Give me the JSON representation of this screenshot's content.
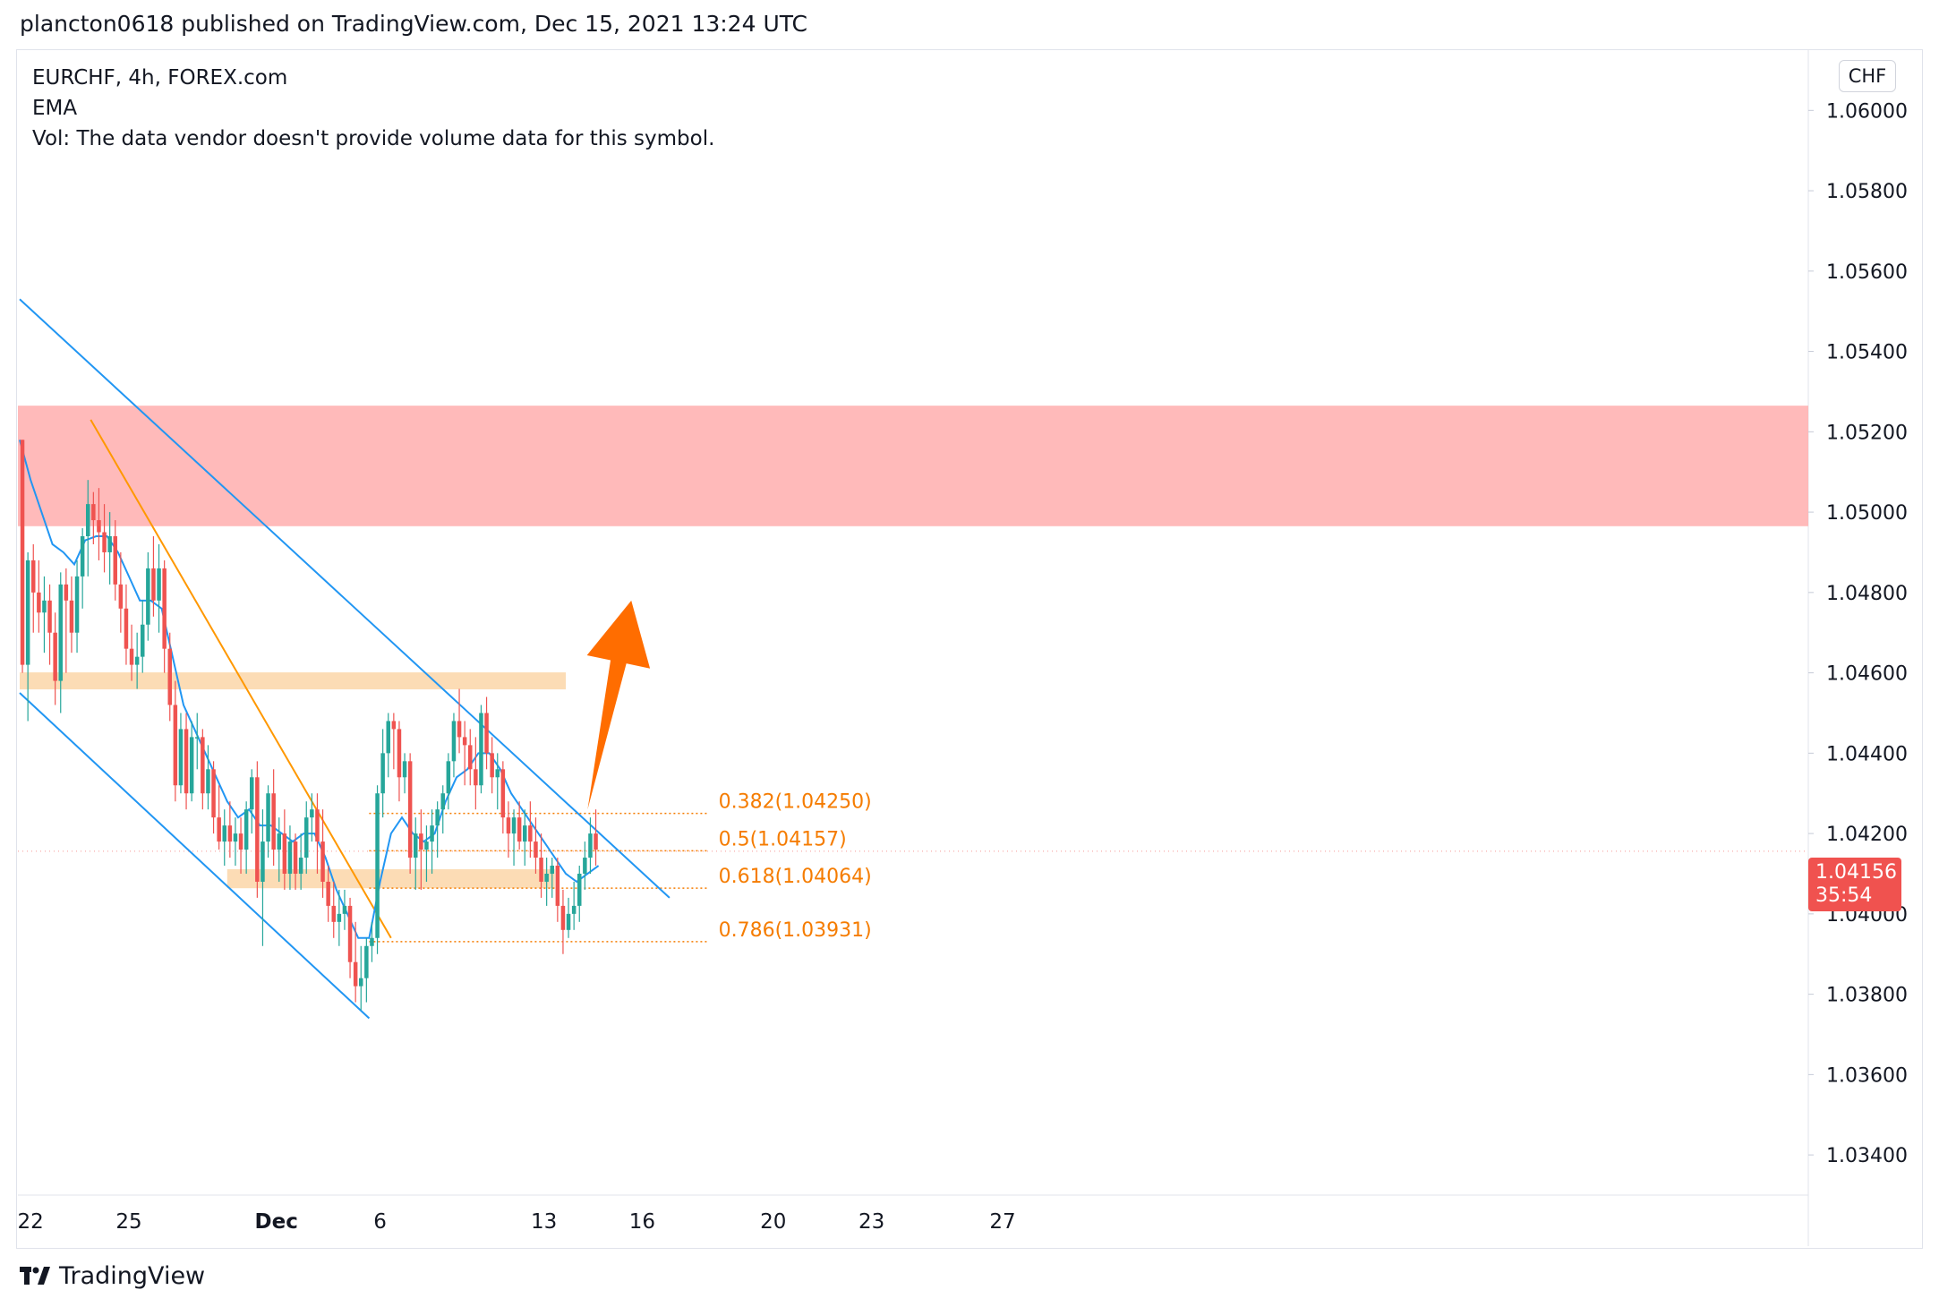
{
  "header": {
    "published_line": "plancton0618 published on TradingView.com, Dec 15, 2021 13:24 UTC"
  },
  "legend": {
    "symbol_line": "EURCHF, 4h, FOREX.com",
    "indicator_line": "EMA",
    "volume_line": "Vol: The data vendor doesn't provide volume data for this symbol."
  },
  "price_axis": {
    "currency": "CHF",
    "current_price": "1.04156",
    "countdown": "35:54"
  },
  "footer": {
    "brand": "TradingView"
  },
  "colors": {
    "up": "#26a69a",
    "down": "#ef5350",
    "ema": "#2196f3",
    "channel": "#2196f3",
    "resistance_zone": "#ffb3b3",
    "support_zone": "#fcd6a8",
    "fib": "#f57c00",
    "arrow": "#ff6d00",
    "price_tag": "#f0524f"
  },
  "chart_data": {
    "type": "candlestick",
    "symbol": "EURCHF",
    "interval": "4h",
    "ylim": [
      1.033,
      1.0615
    ],
    "y_ticks": [
      "1.06000",
      "1.05800",
      "1.05600",
      "1.05400",
      "1.05200",
      "1.05000",
      "1.04800",
      "1.04600",
      "1.04400",
      "1.04200",
      "1.04000",
      "1.03800",
      "1.03600",
      "1.03400"
    ],
    "x_ticks": [
      {
        "label": "22",
        "bar": 2
      },
      {
        "label": "25",
        "bar": 20
      },
      {
        "label": "Dec",
        "bar": 47
      },
      {
        "label": "6",
        "bar": 66
      },
      {
        "label": "13",
        "bar": 96
      },
      {
        "label": "16",
        "bar": 114
      },
      {
        "label": "20",
        "bar": 138
      },
      {
        "label": "23",
        "bar": 156
      },
      {
        "label": "27",
        "bar": 180
      }
    ],
    "ohlc": [
      [
        1.0518,
        1.0518,
        1.046,
        1.0462
      ],
      [
        1.0462,
        1.049,
        1.0448,
        1.0488
      ],
      [
        1.0488,
        1.0492,
        1.047,
        1.048
      ],
      [
        1.048,
        1.0488,
        1.047,
        1.0475
      ],
      [
        1.0475,
        1.0484,
        1.0465,
        1.0478
      ],
      [
        1.0478,
        1.0482,
        1.0462,
        1.047
      ],
      [
        1.047,
        1.0475,
        1.0452,
        1.0458
      ],
      [
        1.0458,
        1.0485,
        1.045,
        1.0482
      ],
      [
        1.0482,
        1.0486,
        1.046,
        1.0478
      ],
      [
        1.0478,
        1.0484,
        1.0465,
        1.047
      ],
      [
        1.047,
        1.0488,
        1.0465,
        1.0484
      ],
      [
        1.0484,
        1.0496,
        1.0476,
        1.0494
      ],
      [
        1.0494,
        1.0508,
        1.0484,
        1.0502
      ],
      [
        1.0502,
        1.0505,
        1.0492,
        1.0498
      ],
      [
        1.0498,
        1.0506,
        1.0488,
        1.0495
      ],
      [
        1.0495,
        1.0502,
        1.0485,
        1.049
      ],
      [
        1.049,
        1.05,
        1.0482,
        1.0494
      ],
      [
        1.0494,
        1.0498,
        1.0478,
        1.0482
      ],
      [
        1.0482,
        1.049,
        1.047,
        1.0476
      ],
      [
        1.0476,
        1.0482,
        1.0462,
        1.0466
      ],
      [
        1.0466,
        1.0472,
        1.0458,
        1.0462
      ],
      [
        1.0462,
        1.047,
        1.0456,
        1.0464
      ],
      [
        1.0464,
        1.0478,
        1.046,
        1.0472
      ],
      [
        1.0472,
        1.049,
        1.0468,
        1.0486
      ],
      [
        1.0486,
        1.0494,
        1.0474,
        1.0478
      ],
      [
        1.0478,
        1.0492,
        1.047,
        1.0486
      ],
      [
        1.0486,
        1.0488,
        1.046,
        1.0466
      ],
      [
        1.0466,
        1.047,
        1.0448,
        1.0452
      ],
      [
        1.0452,
        1.0458,
        1.0428,
        1.0432
      ],
      [
        1.0432,
        1.045,
        1.043,
        1.0446
      ],
      [
        1.0446,
        1.045,
        1.0426,
        1.043
      ],
      [
        1.043,
        1.0448,
        1.0428,
        1.0444
      ],
      [
        1.0444,
        1.045,
        1.0436,
        1.0444
      ],
      [
        1.0444,
        1.0446,
        1.0426,
        1.043
      ],
      [
        1.043,
        1.0442,
        1.0426,
        1.0436
      ],
      [
        1.0436,
        1.0438,
        1.042,
        1.0424
      ],
      [
        1.0424,
        1.0432,
        1.0416,
        1.0418
      ],
      [
        1.0418,
        1.0426,
        1.0412,
        1.0422
      ],
      [
        1.0422,
        1.0428,
        1.0414,
        1.0418
      ],
      [
        1.0418,
        1.0424,
        1.0412,
        1.042
      ],
      [
        1.042,
        1.0424,
        1.041,
        1.0416
      ],
      [
        1.0416,
        1.0428,
        1.041,
        1.0426
      ],
      [
        1.0426,
        1.0436,
        1.042,
        1.0434
      ],
      [
        1.0434,
        1.0438,
        1.0404,
        1.0408
      ],
      [
        1.0408,
        1.0426,
        1.0392,
        1.0418
      ],
      [
        1.0418,
        1.0432,
        1.0414,
        1.043
      ],
      [
        1.043,
        1.0436,
        1.0412,
        1.0416
      ],
      [
        1.0416,
        1.0424,
        1.0408,
        1.042
      ],
      [
        1.042,
        1.0426,
        1.0406,
        1.041
      ],
      [
        1.041,
        1.0422,
        1.0406,
        1.0418
      ],
      [
        1.0418,
        1.042,
        1.0406,
        1.041
      ],
      [
        1.041,
        1.042,
        1.0406,
        1.0414
      ],
      [
        1.0414,
        1.0428,
        1.041,
        1.0424
      ],
      [
        1.0424,
        1.043,
        1.0418,
        1.0426
      ],
      [
        1.0426,
        1.043,
        1.041,
        1.0418
      ],
      [
        1.0418,
        1.0426,
        1.0404,
        1.0408
      ],
      [
        1.0408,
        1.0412,
        1.0398,
        1.0402
      ],
      [
        1.0402,
        1.0408,
        1.0394,
        1.0398
      ],
      [
        1.0398,
        1.0406,
        1.0392,
        1.04
      ],
      [
        1.04,
        1.0406,
        1.0396,
        1.0402
      ],
      [
        1.0402,
        1.0404,
        1.0384,
        1.0388
      ],
      [
        1.0388,
        1.0398,
        1.0378,
        1.0382
      ],
      [
        1.0382,
        1.0392,
        1.0376,
        1.0384
      ],
      [
        1.0384,
        1.0394,
        1.0378,
        1.0392
      ],
      [
        1.0392,
        1.0398,
        1.0388,
        1.0394
      ],
      [
        1.0394,
        1.0432,
        1.039,
        1.043
      ],
      [
        1.043,
        1.0446,
        1.0424,
        1.044
      ],
      [
        1.044,
        1.045,
        1.0434,
        1.0448
      ],
      [
        1.0448,
        1.045,
        1.0436,
        1.0446
      ],
      [
        1.0446,
        1.0448,
        1.0428,
        1.0434
      ],
      [
        1.0434,
        1.044,
        1.043,
        1.0438
      ],
      [
        1.0438,
        1.044,
        1.041,
        1.0414
      ],
      [
        1.0414,
        1.0424,
        1.0406,
        1.042
      ],
      [
        1.042,
        1.0426,
        1.0406,
        1.0416
      ],
      [
        1.0416,
        1.0422,
        1.0408,
        1.0418
      ],
      [
        1.0418,
        1.0426,
        1.041,
        1.0422
      ],
      [
        1.0422,
        1.0428,
        1.0414,
        1.0426
      ],
      [
        1.0426,
        1.0432,
        1.042,
        1.043
      ],
      [
        1.043,
        1.044,
        1.0426,
        1.0438
      ],
      [
        1.0438,
        1.045,
        1.0434,
        1.0448
      ],
      [
        1.0448,
        1.0456,
        1.044,
        1.0444
      ],
      [
        1.0444,
        1.0448,
        1.0432,
        1.0442
      ],
      [
        1.0442,
        1.0446,
        1.0432,
        1.0436
      ],
      [
        1.0436,
        1.0444,
        1.0426,
        1.0432
      ],
      [
        1.0432,
        1.0452,
        1.043,
        1.045
      ],
      [
        1.045,
        1.0454,
        1.0436,
        1.044
      ],
      [
        1.044,
        1.0444,
        1.043,
        1.0434
      ],
      [
        1.0434,
        1.044,
        1.0426,
        1.0436
      ],
      [
        1.0436,
        1.0438,
        1.042,
        1.0424
      ],
      [
        1.0424,
        1.0428,
        1.0414,
        1.042
      ],
      [
        1.042,
        1.0426,
        1.0412,
        1.0424
      ],
      [
        1.0424,
        1.0428,
        1.0416,
        1.0418
      ],
      [
        1.0418,
        1.0426,
        1.0412,
        1.0422
      ],
      [
        1.0422,
        1.0428,
        1.0414,
        1.0418
      ],
      [
        1.0418,
        1.0424,
        1.041,
        1.0414
      ],
      [
        1.0414,
        1.042,
        1.0404,
        1.0408
      ],
      [
        1.0408,
        1.0414,
        1.0402,
        1.041
      ],
      [
        1.041,
        1.0414,
        1.0404,
        1.0412
      ],
      [
        1.0412,
        1.0414,
        1.0398,
        1.0402
      ],
      [
        1.0402,
        1.0406,
        1.039,
        1.0396
      ],
      [
        1.0396,
        1.0404,
        1.0394,
        1.04
      ],
      [
        1.04,
        1.0408,
        1.0396,
        1.0402
      ],
      [
        1.0402,
        1.0412,
        1.0398,
        1.041
      ],
      [
        1.041,
        1.0418,
        1.0406,
        1.0414
      ],
      [
        1.0414,
        1.0424,
        1.041,
        1.042
      ],
      [
        1.042,
        1.0426,
        1.0412,
        1.0416
      ]
    ],
    "ema": [
      [
        0,
        1.0518
      ],
      [
        2,
        1.0508
      ],
      [
        4,
        1.05
      ],
      [
        6,
        1.0492
      ],
      [
        8,
        1.049
      ],
      [
        10,
        1.0487
      ],
      [
        12,
        1.0493
      ],
      [
        14,
        1.0494
      ],
      [
        16,
        1.0494
      ],
      [
        18,
        1.049
      ],
      [
        20,
        1.0484
      ],
      [
        22,
        1.0478
      ],
      [
        24,
        1.0478
      ],
      [
        26,
        1.0476
      ],
      [
        28,
        1.0464
      ],
      [
        30,
        1.0452
      ],
      [
        32,
        1.0446
      ],
      [
        34,
        1.044
      ],
      [
        36,
        1.0434
      ],
      [
        38,
        1.0428
      ],
      [
        40,
        1.0424
      ],
      [
        42,
        1.0426
      ],
      [
        44,
        1.0422
      ],
      [
        46,
        1.0422
      ],
      [
        48,
        1.042
      ],
      [
        50,
        1.0418
      ],
      [
        52,
        1.042
      ],
      [
        54,
        1.042
      ],
      [
        56,
        1.0414
      ],
      [
        58,
        1.0406
      ],
      [
        60,
        1.04
      ],
      [
        62,
        1.0394
      ],
      [
        64,
        1.0394
      ],
      [
        66,
        1.0408
      ],
      [
        68,
        1.042
      ],
      [
        70,
        1.0424
      ],
      [
        72,
        1.042
      ],
      [
        74,
        1.0418
      ],
      [
        76,
        1.042
      ],
      [
        78,
        1.0428
      ],
      [
        80,
        1.0434
      ],
      [
        82,
        1.0436
      ],
      [
        84,
        1.044
      ],
      [
        86,
        1.044
      ],
      [
        88,
        1.0436
      ],
      [
        90,
        1.043
      ],
      [
        92,
        1.0426
      ],
      [
        94,
        1.0422
      ],
      [
        96,
        1.0418
      ],
      [
        98,
        1.0414
      ],
      [
        100,
        1.041
      ],
      [
        102,
        1.0408
      ],
      [
        104,
        1.041
      ],
      [
        106,
        1.0412
      ]
    ],
    "resistance_zone": [
      1.04965,
      1.05265
    ],
    "support_zones": [
      {
        "from_bar": 0,
        "to_bar": 100,
        "range": [
          1.0457,
          1.0459
        ]
      },
      {
        "from_bar": 38,
        "to_bar": 98,
        "range": [
          1.04075,
          1.041
        ]
      }
    ],
    "trendlines": [
      {
        "role": "channel-upper",
        "from": [
          0,
          1.0553
        ],
        "to": [
          119,
          1.0404
        ]
      },
      {
        "role": "channel-lower",
        "from": [
          0,
          1.0455
        ],
        "to": [
          64,
          1.0374
        ]
      },
      {
        "role": "descending",
        "from": [
          13,
          1.0523
        ],
        "to": [
          68,
          1.0394
        ]
      }
    ],
    "fib_levels": [
      {
        "label": "0.382(1.04250)",
        "value": 1.0425
      },
      {
        "label": "0.5(1.04157)",
        "value": 1.04157
      },
      {
        "label": "0.618(1.04064)",
        "value": 1.04064
      },
      {
        "label": "0.786(1.03931)",
        "value": 1.03931
      }
    ],
    "fib_from_bar": 64,
    "fib_to_bar": 126,
    "forecast_arrow": {
      "from": [
        104,
        1.0426
      ],
      "to": [
        112,
        1.0478
      ]
    }
  }
}
